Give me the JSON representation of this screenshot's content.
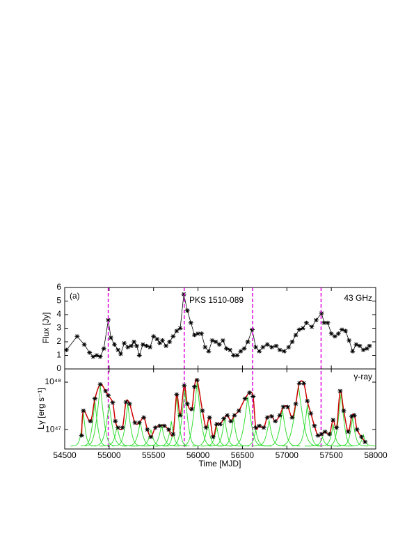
{
  "chart_data": [
    {
      "type": "line",
      "panel_label": "(a)",
      "title": "PKS 1510-089",
      "band": "43 GHz",
      "ylabel": "Flux [Jy]",
      "color": "#000000",
      "xlim": [
        54500,
        58000
      ],
      "xticks": [
        54500,
        55000,
        55500,
        56000,
        56500,
        57000,
        57500,
        58000
      ],
      "ylim": [
        0,
        6
      ],
      "yticks": [
        0,
        1,
        2,
        3,
        4,
        5,
        6
      ],
      "vlines": [
        54990,
        55845,
        56615,
        57385
      ],
      "vline_color": "#e000e0",
      "x": [
        54520,
        54640,
        54720,
        54780,
        54820,
        54860,
        54900,
        54940,
        54990,
        55020,
        55060,
        55100,
        55130,
        55170,
        55210,
        55250,
        55280,
        55310,
        55340,
        55380,
        55420,
        55460,
        55500,
        55540,
        55570,
        55600,
        55640,
        55680,
        55720,
        55760,
        55800,
        55840,
        55880,
        55920,
        55960,
        56000,
        56040,
        56080,
        56120,
        56160,
        56200,
        56240,
        56280,
        56320,
        56360,
        56400,
        56440,
        56480,
        56520,
        56560,
        56610,
        56650,
        56690,
        56730,
        56780,
        56830,
        56880,
        56920,
        56970,
        57020,
        57060,
        57100,
        57140,
        57180,
        57220,
        57280,
        57330,
        57390,
        57420,
        57460,
        57500,
        57540,
        57580,
        57620,
        57660,
        57700,
        57740,
        57780,
        57820,
        57860,
        57900,
        57930
      ],
      "values": [
        1.4,
        2.4,
        1.8,
        1.2,
        0.9,
        1.0,
        0.9,
        1.5,
        3.6,
        2.3,
        1.8,
        1.4,
        1.1,
        1.9,
        1.6,
        1.7,
        2.0,
        1.7,
        1.0,
        1.8,
        1.7,
        1.6,
        2.4,
        2.2,
        1.9,
        2.1,
        1.7,
        2.0,
        2.4,
        2.8,
        3.0,
        5.5,
        4.3,
        3.4,
        2.5,
        2.6,
        2.6,
        1.6,
        1.3,
        2.1,
        2.0,
        1.8,
        2.1,
        1.5,
        1.4,
        1.0,
        1.0,
        1.3,
        1.5,
        2.0,
        2.9,
        1.6,
        1.3,
        1.6,
        1.8,
        1.6,
        1.7,
        1.4,
        1.3,
        1.6,
        2.0,
        2.5,
        2.9,
        3.0,
        3.4,
        3.1,
        3.6,
        4.1,
        3.4,
        3.4,
        2.6,
        2.4,
        2.6,
        2.9,
        2.8,
        2.1,
        1.3,
        1.8,
        1.7,
        1.4,
        1.5,
        1.7
      ]
    },
    {
      "type": "flares",
      "band": "γ-ray",
      "ylabel": "Lγ [erg s⁻¹]",
      "xlabel": "Time [MJD]",
      "log": true,
      "color": "#cc0000",
      "marker_color": "#000000",
      "flare_color": "#33dd33",
      "xlim": [
        54500,
        58000
      ],
      "xticks": [
        54500,
        55000,
        55500,
        56000,
        56500,
        57000,
        57500,
        58000
      ],
      "ylim": [
        3.9e+46,
        1.9e+48
      ],
      "yticks": [
        {
          "value": 1e+47,
          "label": "10⁴⁷"
        },
        {
          "value": 1e+48,
          "label": "10⁴⁸"
        }
      ],
      "baseline": 4.5e+46,
      "x": [
        54690,
        54710,
        54790,
        54840,
        54900,
        54960,
        54990,
        55040,
        55070,
        55100,
        55150,
        55190,
        55230,
        55290,
        55340,
        55390,
        55430,
        55470,
        55520,
        55570,
        55620,
        55670,
        55720,
        55760,
        55800,
        55845,
        55880,
        55930,
        55960,
        55990,
        56050,
        56090,
        56130,
        56170,
        56210,
        56250,
        56290,
        56330,
        56370,
        56410,
        56460,
        56530,
        56580,
        56620,
        56650,
        56690,
        56740,
        56780,
        56830,
        56870,
        56920,
        56960,
        57010,
        57060,
        57100,
        57140,
        57190,
        57230,
        57270,
        57310,
        57350,
        57390,
        57430,
        57480,
        57520,
        57560,
        57600,
        57640,
        57690,
        57730,
        57760,
        57790,
        57840,
        57880
      ],
      "values": [
        7.5e+46,
        2.5e+47,
        1.5e+47,
        4.5e+47,
        9e+47,
        6.5e+47,
        5.2e+47,
        3.7e+47,
        1.5e+47,
        1.1e+47,
        1.1e+47,
        3.8e+47,
        3.5e+47,
        1.4e+47,
        1.4e+47,
        1.8e+47,
        1e+47,
        7e+46,
        1.1e+47,
        1.2e+47,
        1.2e+47,
        1e+47,
        8e+46,
        5.5e+47,
        2e+47,
        8.5e+47,
        3.5e+47,
        2.7e+47,
        8e+47,
        1.1e+48,
        2.5e+47,
        1.1e+47,
        1.8e+47,
        7e+46,
        1.3e+47,
        1.3e+47,
        1.7e+47,
        2e+47,
        1.5e+47,
        2e+47,
        2.5e+47,
        4.5e+47,
        6e+47,
        5e+47,
        1.1e+47,
        1.2e+47,
        1.1e+47,
        1.8e+47,
        1.9e+47,
        1.5e+47,
        2e+47,
        3e+47,
        3e+47,
        1.8e+47,
        3.5e+47,
        9.5e+47,
        9.5e+47,
        4e+47,
        2.2e+47,
        1.2e+47,
        7.5e+46,
        8e+46,
        9e+46,
        8e+46,
        1.6e+47,
        1.1e+47,
        6.5e+47,
        2.5e+47,
        9e+46,
        1.9e+47,
        2e+47,
        1e+47,
        7e+46,
        5.5e+46
      ],
      "flares": [
        {
          "x": 54710,
          "value": 2.3e+47,
          "width": 18
        },
        {
          "x": 54840,
          "value": 4e+47,
          "width": 20
        },
        {
          "x": 54900,
          "value": 8.5e+47,
          "width": 22
        },
        {
          "x": 55000,
          "value": 3.5e+47,
          "width": 25
        },
        {
          "x": 55090,
          "value": 1.2e+47,
          "width": 25
        },
        {
          "x": 55210,
          "value": 3.5e+47,
          "width": 22
        },
        {
          "x": 55350,
          "value": 1.5e+47,
          "width": 25
        },
        {
          "x": 55470,
          "value": 1e+47,
          "width": 25
        },
        {
          "x": 55590,
          "value": 1.3e+47,
          "width": 25
        },
        {
          "x": 55700,
          "value": 1.5e+47,
          "width": 22
        },
        {
          "x": 55760,
          "value": 5e+47,
          "width": 18
        },
        {
          "x": 55850,
          "value": 7e+47,
          "width": 20
        },
        {
          "x": 55990,
          "value": 1e+48,
          "width": 22
        },
        {
          "x": 56110,
          "value": 1.4e+47,
          "width": 22
        },
        {
          "x": 56210,
          "value": 1.2e+47,
          "width": 22
        },
        {
          "x": 56300,
          "value": 1.8e+47,
          "width": 22
        },
        {
          "x": 56400,
          "value": 1.8e+47,
          "width": 22
        },
        {
          "x": 56560,
          "value": 5e+47,
          "width": 25
        },
        {
          "x": 56650,
          "value": 1e+47,
          "width": 22
        },
        {
          "x": 56800,
          "value": 1.6e+47,
          "width": 25
        },
        {
          "x": 56950,
          "value": 2.7e+47,
          "width": 25
        },
        {
          "x": 57130,
          "value": 8.5e+47,
          "width": 28
        },
        {
          "x": 57230,
          "value": 3.3e+47,
          "width": 22
        },
        {
          "x": 57400,
          "value": 7e+46,
          "width": 25
        },
        {
          "x": 57520,
          "value": 1.3e+47,
          "width": 22
        },
        {
          "x": 57610,
          "value": 6e+47,
          "width": 20
        },
        {
          "x": 57740,
          "value": 1.8e+47,
          "width": 22
        },
        {
          "x": 57860,
          "value": 8e+46,
          "width": 22
        }
      ]
    }
  ]
}
